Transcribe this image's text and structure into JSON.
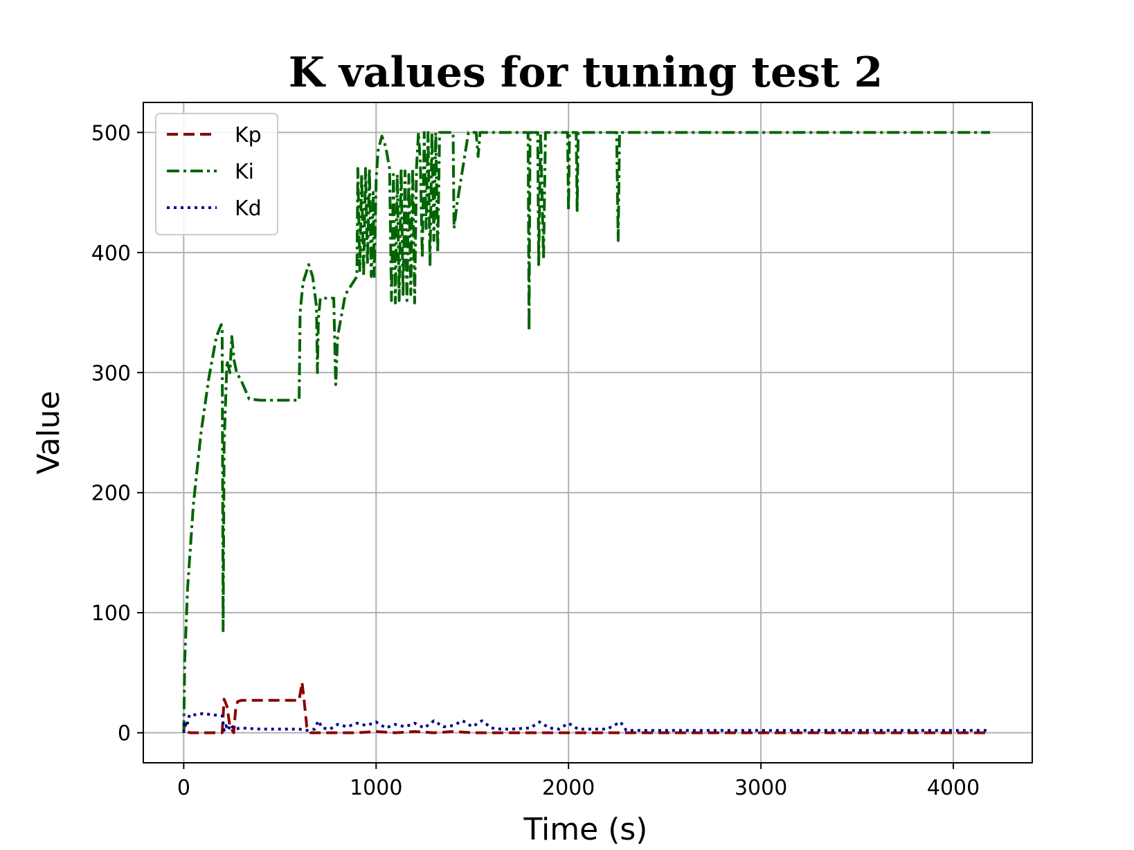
{
  "chart_data": {
    "type": "line",
    "title": "K values for tuning test 2",
    "xlabel": "Time (s)",
    "ylabel": "Value",
    "xlim": [
      -210,
      4410
    ],
    "ylim": [
      -25,
      525
    ],
    "xticks": [
      0,
      1000,
      2000,
      3000,
      4000
    ],
    "yticks": [
      0,
      100,
      200,
      300,
      400,
      500
    ],
    "xtick_labels": [
      "0",
      "1000",
      "2000",
      "3000",
      "4000"
    ],
    "ytick_labels": [
      "0",
      "100",
      "200",
      "300",
      "400",
      "500"
    ],
    "grid": true,
    "legend": {
      "position": "top-left"
    },
    "series": [
      {
        "name": "Kp",
        "color": "#8b0000",
        "linestyle": "dashed",
        "points": [
          [
            0,
            2
          ],
          [
            5,
            8
          ],
          [
            15,
            2
          ],
          [
            30,
            0
          ],
          [
            80,
            0
          ],
          [
            120,
            0
          ],
          [
            180,
            0
          ],
          [
            200,
            0
          ],
          [
            210,
            28
          ],
          [
            225,
            22
          ],
          [
            240,
            5
          ],
          [
            260,
            0
          ],
          [
            270,
            20
          ],
          [
            280,
            26
          ],
          [
            300,
            27
          ],
          [
            400,
            27
          ],
          [
            500,
            27
          ],
          [
            600,
            27
          ],
          [
            615,
            42
          ],
          [
            625,
            28
          ],
          [
            640,
            5
          ],
          [
            660,
            0
          ],
          [
            700,
            0
          ],
          [
            900,
            0
          ],
          [
            1000,
            1
          ],
          [
            1100,
            0
          ],
          [
            1200,
            1
          ],
          [
            1300,
            0
          ],
          [
            1400,
            1
          ],
          [
            1500,
            0
          ],
          [
            1600,
            0
          ],
          [
            1700,
            0
          ],
          [
            1800,
            0
          ],
          [
            1900,
            0
          ],
          [
            2000,
            0
          ],
          [
            2500,
            0
          ],
          [
            3000,
            0
          ],
          [
            3500,
            0
          ],
          [
            4000,
            0
          ],
          [
            4190,
            0
          ]
        ]
      },
      {
        "name": "Ki",
        "color": "#006400",
        "linestyle": "dashdot",
        "points": [
          [
            0,
            0
          ],
          [
            5,
            60
          ],
          [
            20,
            120
          ],
          [
            50,
            190
          ],
          [
            90,
            250
          ],
          [
            130,
            295
          ],
          [
            170,
            330
          ],
          [
            195,
            340
          ],
          [
            200,
            335
          ],
          [
            205,
            85
          ],
          [
            210,
            240
          ],
          [
            225,
            310
          ],
          [
            240,
            300
          ],
          [
            250,
            330
          ],
          [
            262,
            310
          ],
          [
            275,
            300
          ],
          [
            300,
            293
          ],
          [
            340,
            278
          ],
          [
            400,
            277
          ],
          [
            500,
            277
          ],
          [
            600,
            277
          ],
          [
            605,
            350
          ],
          [
            620,
            375
          ],
          [
            650,
            390
          ],
          [
            670,
            380
          ],
          [
            690,
            355
          ],
          [
            695,
            300
          ],
          [
            700,
            345
          ],
          [
            710,
            362
          ],
          [
            780,
            362
          ],
          [
            790,
            290
          ],
          [
            800,
            330
          ],
          [
            840,
            365
          ],
          [
            880,
            375
          ],
          [
            900,
            380
          ],
          [
            905,
            470
          ],
          [
            915,
            385
          ],
          [
            925,
            465
          ],
          [
            935,
            380
          ],
          [
            945,
            470
          ],
          [
            955,
            390
          ],
          [
            965,
            470
          ],
          [
            975,
            380
          ],
          [
            985,
            450
          ],
          [
            990,
            380
          ],
          [
            1000,
            460
          ],
          [
            1010,
            485
          ],
          [
            1030,
            497
          ],
          [
            1050,
            488
          ],
          [
            1070,
            470
          ],
          [
            1080,
            360
          ],
          [
            1090,
            465
          ],
          [
            1100,
            358
          ],
          [
            1110,
            465
          ],
          [
            1120,
            360
          ],
          [
            1130,
            470
          ],
          [
            1140,
            365
          ],
          [
            1150,
            468
          ],
          [
            1160,
            360
          ],
          [
            1170,
            465
          ],
          [
            1180,
            365
          ],
          [
            1190,
            470
          ],
          [
            1200,
            358
          ],
          [
            1210,
            470
          ],
          [
            1220,
            500
          ],
          [
            1230,
            475
          ],
          [
            1240,
            395
          ],
          [
            1250,
            500
          ],
          [
            1260,
            420
          ],
          [
            1270,
            500
          ],
          [
            1280,
            390
          ],
          [
            1290,
            500
          ],
          [
            1300,
            410
          ],
          [
            1310,
            500
          ],
          [
            1320,
            400
          ],
          [
            1330,
            500
          ],
          [
            1400,
            500
          ],
          [
            1405,
            420
          ],
          [
            1420,
            440
          ],
          [
            1440,
            460
          ],
          [
            1460,
            480
          ],
          [
            1480,
            500
          ],
          [
            1520,
            500
          ],
          [
            1530,
            480
          ],
          [
            1540,
            500
          ],
          [
            1600,
            500
          ],
          [
            1700,
            500
          ],
          [
            1790,
            500
          ],
          [
            1795,
            335
          ],
          [
            1800,
            500
          ],
          [
            1840,
            500
          ],
          [
            1845,
            390
          ],
          [
            1855,
            500
          ],
          [
            1870,
            395
          ],
          [
            1880,
            500
          ],
          [
            1900,
            500
          ],
          [
            1995,
            500
          ],
          [
            2000,
            435
          ],
          [
            2005,
            500
          ],
          [
            2040,
            500
          ],
          [
            2045,
            435
          ],
          [
            2050,
            500
          ],
          [
            2250,
            500
          ],
          [
            2258,
            410
          ],
          [
            2265,
            500
          ],
          [
            2500,
            500
          ],
          [
            3000,
            500
          ],
          [
            3500,
            500
          ],
          [
            4000,
            500
          ],
          [
            4190,
            500
          ]
        ]
      },
      {
        "name": "Kd",
        "color": "#00008b",
        "linestyle": "dotted",
        "points": [
          [
            0,
            0
          ],
          [
            5,
            10
          ],
          [
            15,
            5
          ],
          [
            30,
            15
          ],
          [
            60,
            15
          ],
          [
            100,
            16
          ],
          [
            150,
            15
          ],
          [
            200,
            14
          ],
          [
            210,
            2
          ],
          [
            220,
            6
          ],
          [
            230,
            2
          ],
          [
            245,
            7
          ],
          [
            260,
            3
          ],
          [
            300,
            4
          ],
          [
            400,
            3
          ],
          [
            500,
            3
          ],
          [
            600,
            3
          ],
          [
            640,
            2
          ],
          [
            680,
            3
          ],
          [
            700,
            10
          ],
          [
            720,
            4
          ],
          [
            760,
            3
          ],
          [
            800,
            7
          ],
          [
            850,
            5
          ],
          [
            900,
            8
          ],
          [
            950,
            6
          ],
          [
            1000,
            9
          ],
          [
            1050,
            4
          ],
          [
            1100,
            7
          ],
          [
            1150,
            5
          ],
          [
            1200,
            8
          ],
          [
            1250,
            4
          ],
          [
            1300,
            10
          ],
          [
            1350,
            5
          ],
          [
            1400,
            6
          ],
          [
            1450,
            10
          ],
          [
            1500,
            5
          ],
          [
            1550,
            10
          ],
          [
            1600,
            4
          ],
          [
            1650,
            3
          ],
          [
            1700,
            3
          ],
          [
            1800,
            4
          ],
          [
            1850,
            9
          ],
          [
            1900,
            4
          ],
          [
            1950,
            3
          ],
          [
            2000,
            8
          ],
          [
            2050,
            3
          ],
          [
            2100,
            3
          ],
          [
            2200,
            3
          ],
          [
            2270,
            9
          ],
          [
            2300,
            2
          ],
          [
            2500,
            2
          ],
          [
            3000,
            2
          ],
          [
            3500,
            2
          ],
          [
            4000,
            2
          ],
          [
            4190,
            2
          ]
        ]
      }
    ]
  }
}
